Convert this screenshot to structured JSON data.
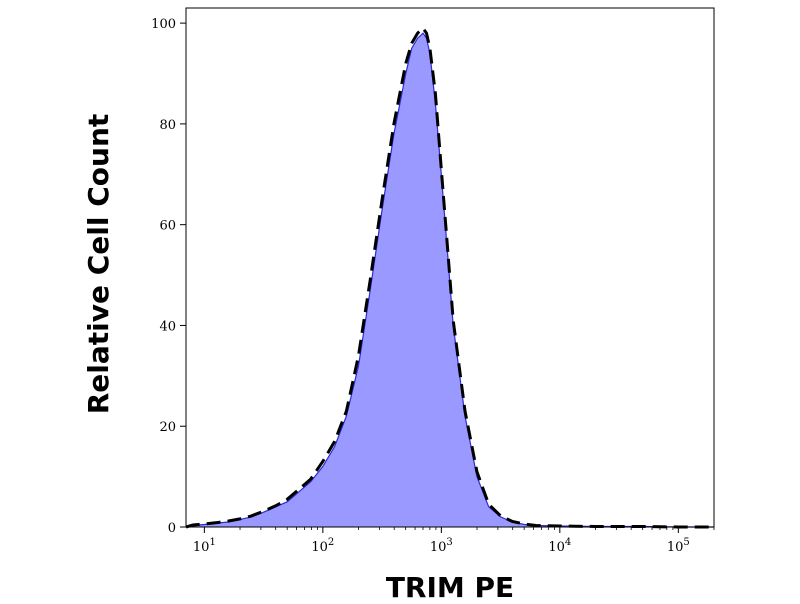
{
  "chart_data": {
    "type": "area",
    "title": "",
    "xlabel": "TRIM PE",
    "ylabel": "Relative Cell Count",
    "x_scale": "log",
    "xlim": [
      7,
      200000
    ],
    "ylim": [
      0,
      103
    ],
    "grid": false,
    "y_ticks": [
      {
        "value": 0,
        "label": "0"
      },
      {
        "value": 20,
        "label": "20"
      },
      {
        "value": 40,
        "label": "40"
      },
      {
        "value": 60,
        "label": "60"
      },
      {
        "value": 80,
        "label": "80"
      },
      {
        "value": 100,
        "label": "100"
      }
    ],
    "x_ticks": [
      {
        "value": 10,
        "base": "10",
        "exp": "1"
      },
      {
        "value": 100,
        "base": "10",
        "exp": "2"
      },
      {
        "value": 1000,
        "base": "10",
        "exp": "3"
      },
      {
        "value": 10000,
        "base": "10",
        "exp": "4"
      },
      {
        "value": 100000,
        "base": "10",
        "exp": "5"
      }
    ],
    "series": [
      {
        "style": "filled",
        "fill_color": "#9999ff",
        "line_color": "#2b2bd6",
        "x": [
          7,
          8,
          10,
          13,
          16,
          20,
          25,
          32,
          40,
          50,
          63,
          79,
          100,
          126,
          158,
          200,
          251,
          316,
          398,
          501,
          562,
          631,
          700,
          750,
          800,
          891,
          1000,
          1122,
          1259,
          1585,
          1995,
          2512,
          3162,
          3981,
          5012,
          6310,
          10000,
          20000,
          50000,
          100000,
          200000
        ],
        "y": [
          0,
          0.3,
          0.5,
          0.8,
          1,
          1.5,
          2,
          3,
          4,
          5,
          7,
          9,
          12,
          16,
          22,
          32,
          47,
          63,
          78,
          90,
          95,
          97,
          98,
          97,
          94,
          84,
          70,
          55,
          40,
          22,
          10,
          4,
          2,
          1,
          0.5,
          0.3,
          0.2,
          0.1,
          0.1,
          0,
          0
        ]
      },
      {
        "style": "dashed",
        "line_color": "#000000",
        "x": [
          7,
          8,
          10,
          13,
          16,
          20,
          25,
          32,
          40,
          50,
          63,
          79,
          100,
          126,
          158,
          200,
          251,
          316,
          398,
          501,
          562,
          631,
          700,
          750,
          800,
          891,
          1000,
          1122,
          1259,
          1585,
          1995,
          2512,
          3162,
          3981,
          5012,
          6310,
          10000,
          20000,
          50000,
          100000,
          200000
        ],
        "y": [
          0,
          0.4,
          0.6,
          0.9,
          1.2,
          1.6,
          2.2,
          3.2,
          4.2,
          5.5,
          7.5,
          9.5,
          13,
          17,
          23,
          34,
          49,
          65,
          80,
          92,
          96,
          98,
          99,
          98,
          95,
          86,
          71,
          56,
          41,
          23,
          11,
          4.5,
          2.2,
          1.1,
          0.6,
          0.3,
          0.2,
          0.1,
          0.1,
          0,
          0
        ]
      }
    ]
  }
}
